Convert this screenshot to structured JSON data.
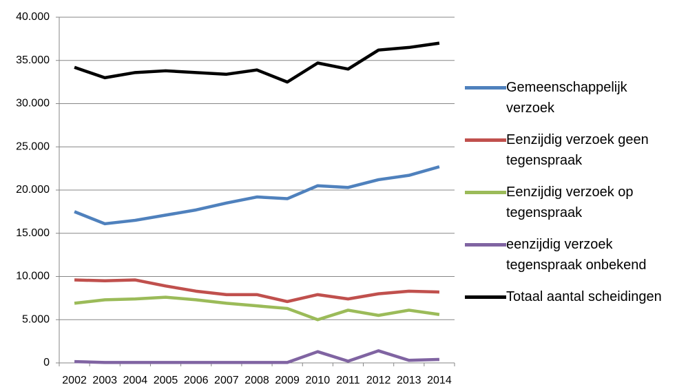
{
  "chart_data": {
    "type": "line",
    "categories": [
      "2002",
      "2003",
      "2004",
      "2005",
      "2006",
      "2007",
      "2008",
      "2009",
      "2010",
      "2011",
      "2012",
      "2013",
      "2014"
    ],
    "series": [
      {
        "name": "Gemeenschappelijk verzoek",
        "color": "#4f81bd",
        "values": [
          17500,
          16100,
          16500,
          17100,
          17700,
          18500,
          19200,
          19000,
          20500,
          20300,
          21200,
          21700,
          22700
        ]
      },
      {
        "name": "Eenzijdig verzoek geen tegenspraak",
        "color": "#c0504d",
        "values": [
          9600,
          9500,
          9600,
          8900,
          8300,
          7900,
          7900,
          7100,
          7900,
          7400,
          8000,
          8300,
          8200
        ]
      },
      {
        "name": "Eenzijdig verzoek op tegenspraak",
        "color": "#9bbb59",
        "values": [
          6900,
          7300,
          7400,
          7600,
          7300,
          6900,
          6600,
          6300,
          5000,
          6100,
          5500,
          6100,
          5600
        ]
      },
      {
        "name": "eenzijdig verzoek tegenspraak onbekend",
        "color": "#8064a2",
        "values": [
          150,
          50,
          50,
          50,
          50,
          50,
          50,
          50,
          1300,
          200,
          1400,
          300,
          400
        ]
      },
      {
        "name": "Totaal aantal scheidingen",
        "color": "#000000",
        "values": [
          34200,
          33000,
          33600,
          33800,
          33600,
          33400,
          33900,
          32500,
          34700,
          34000,
          36200,
          36500,
          37000
        ]
      }
    ],
    "ylim": [
      0,
      40000
    ],
    "yticks": [
      0,
      {
        "value": 5000,
        "label": "5.000"
      },
      {
        "value": 10000,
        "label": "10.000"
      },
      {
        "value": 15000,
        "label": "15.000"
      },
      {
        "value": 20000,
        "label": "20.000"
      },
      {
        "value": 25000,
        "label": "25.000"
      },
      {
        "value": 30000,
        "label": "30.000"
      },
      {
        "value": 35000,
        "label": "35.000"
      },
      {
        "value": 40000,
        "label": "40.000"
      }
    ],
    "grid": true
  }
}
